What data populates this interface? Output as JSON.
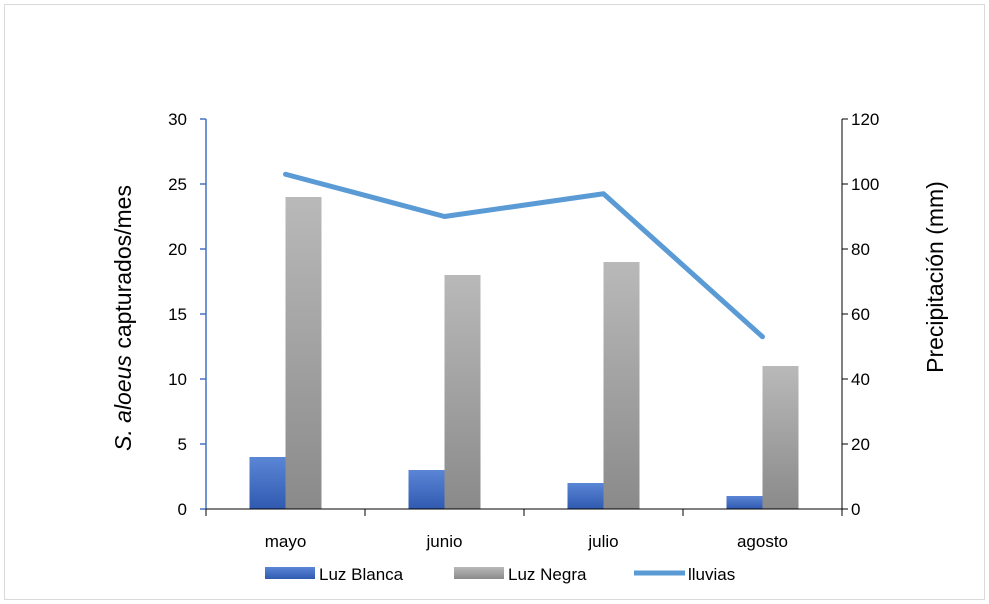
{
  "chart_data": {
    "type": "bar",
    "categories": [
      "mayo",
      "junio",
      "julio",
      "agosto"
    ],
    "series": [
      {
        "name": "Luz Blanca",
        "type": "bar",
        "axis": "left",
        "color": "#4472C4",
        "values": [
          4,
          3,
          2,
          1
        ]
      },
      {
        "name": "Luz Negra",
        "type": "bar",
        "axis": "left",
        "color": "#A5A5A5",
        "values": [
          24,
          18,
          19,
          11
        ]
      },
      {
        "name": "lluvias",
        "type": "line",
        "axis": "right",
        "color": "#5B9BD5",
        "values": [
          103,
          90,
          97,
          53
        ]
      }
    ],
    "ylabel_italic": "S. aloeus",
    "ylabel_rest": " capturados/mes",
    "y2label": "Precipitación (mm)",
    "ylim": [
      0,
      30
    ],
    "yticks": [
      0,
      5,
      10,
      15,
      20,
      25,
      30
    ],
    "y2lim": [
      0,
      120
    ],
    "y2ticks": [
      0,
      20,
      40,
      60,
      80,
      100,
      120
    ],
    "legend_position": "bottom",
    "grid": false
  }
}
